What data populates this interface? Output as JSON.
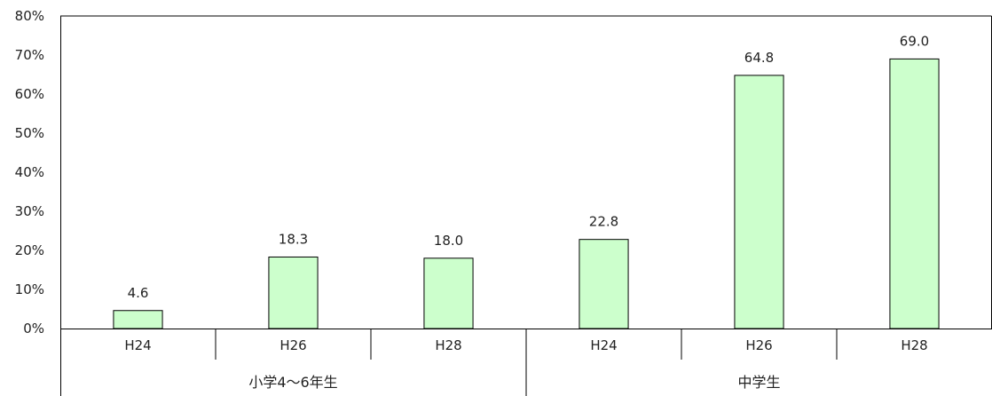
{
  "chart_data": {
    "type": "bar",
    "ylim": [
      0,
      80
    ],
    "yticks": [
      0,
      10,
      20,
      30,
      40,
      50,
      60,
      70,
      80
    ],
    "ytick_labels": [
      "0%",
      "10%",
      "20%",
      "30%",
      "40%",
      "50%",
      "60%",
      "70%",
      "80%"
    ],
    "grid": false,
    "bar_color": "#ccffcc",
    "bar_edge_color": "#000000",
    "groups": [
      {
        "label": "小学4～6年生",
        "categories": [
          "H24",
          "H26",
          "H28"
        ],
        "values": [
          4.6,
          18.3,
          18.0
        ],
        "value_labels": [
          "4.6",
          "18.3",
          "18.0"
        ]
      },
      {
        "label": "中学生",
        "categories": [
          "H24",
          "H26",
          "H28"
        ],
        "values": [
          22.8,
          64.8,
          69.0
        ],
        "value_labels": [
          "22.8",
          "64.8",
          "69.0"
        ]
      }
    ]
  }
}
